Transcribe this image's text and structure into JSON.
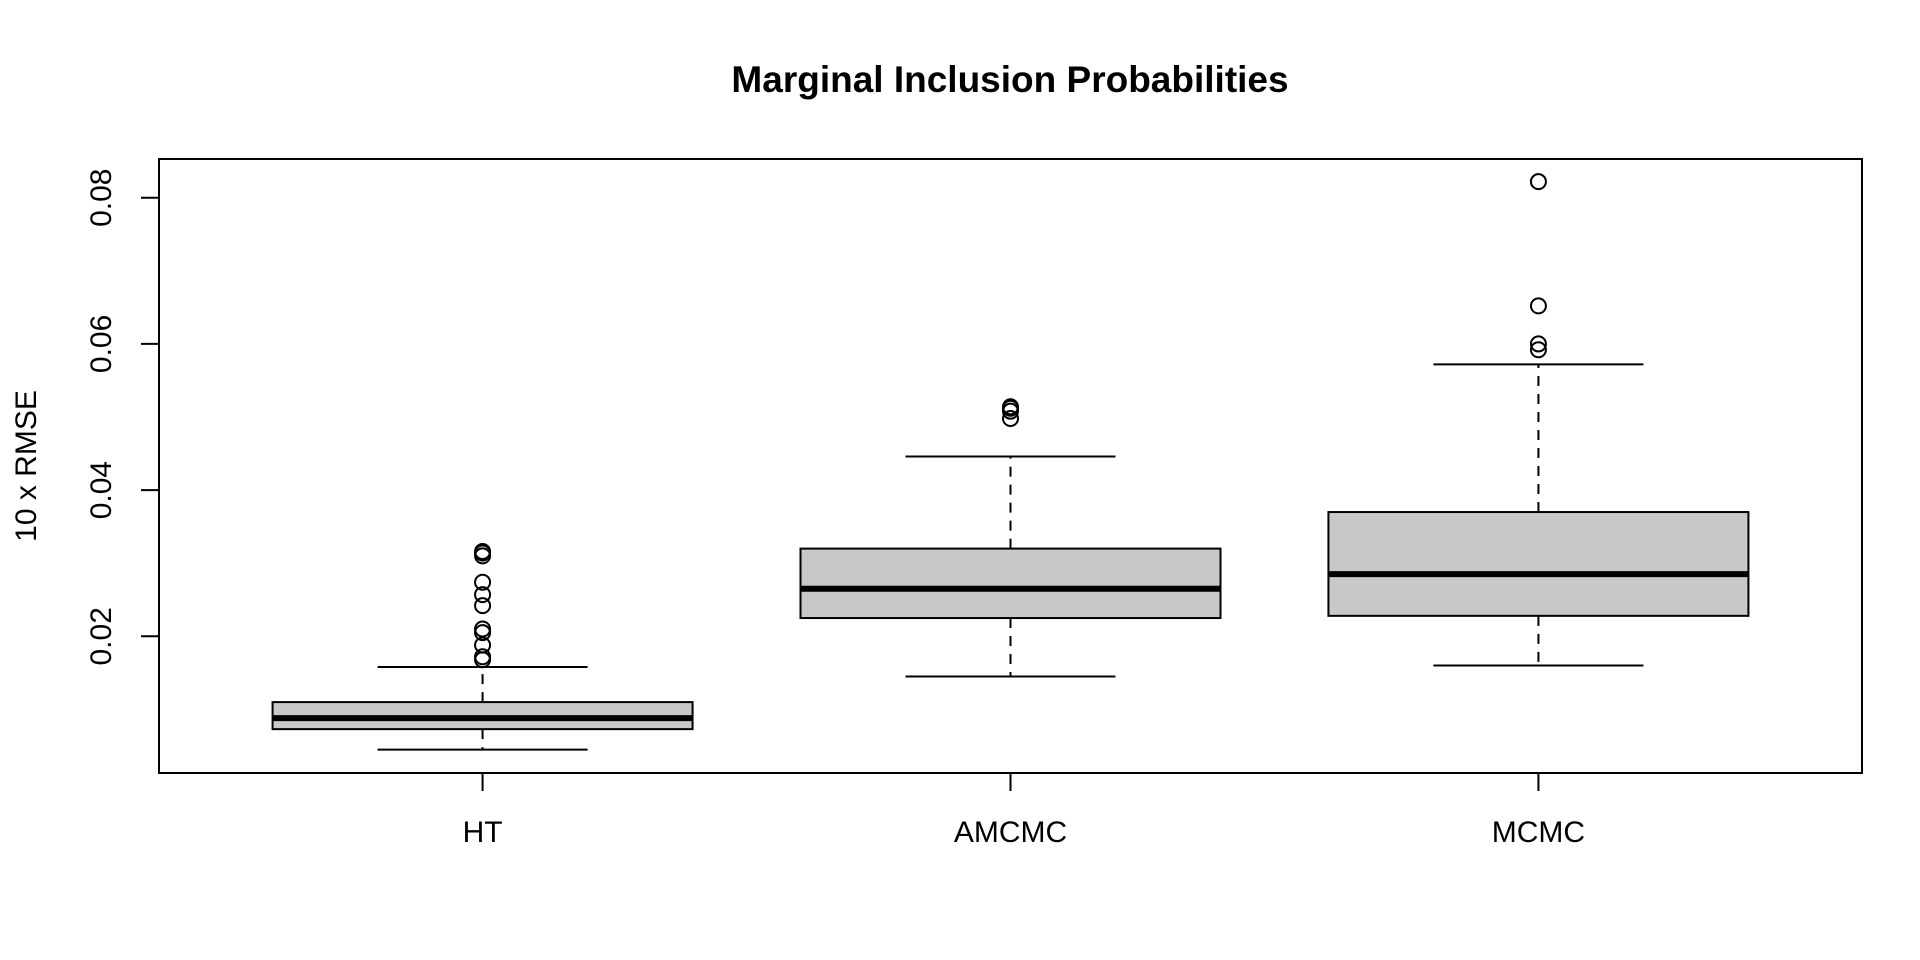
{
  "chart_data": {
    "type": "box",
    "title": "Marginal Inclusion Probabilities",
    "xlabel": "",
    "ylabel": "10 x RMSE",
    "ylim": [
      0.0013,
      0.0853
    ],
    "yticks": [
      0.02,
      0.04,
      0.06,
      0.08
    ],
    "ytick_labels": [
      "0.02",
      "0.04",
      "0.06",
      "0.08"
    ],
    "categories": [
      "HT",
      "AMCMC",
      "MCMC"
    ],
    "boxes": [
      {
        "name": "HT",
        "whisker_low": 0.0045,
        "q1": 0.0073,
        "median": 0.0088,
        "q3": 0.011,
        "whisker_high": 0.0158,
        "outliers": [
          0.0168,
          0.0172,
          0.0188,
          0.0205,
          0.021,
          0.0242,
          0.0257,
          0.0274,
          0.031,
          0.0314,
          0.0316
        ]
      },
      {
        "name": "AMCMC",
        "whisker_low": 0.0145,
        "q1": 0.0225,
        "median": 0.0265,
        "q3": 0.032,
        "whisker_high": 0.0446,
        "outliers": [
          0.0498,
          0.0508,
          0.0512,
          0.0514
        ]
      },
      {
        "name": "MCMC",
        "whisker_low": 0.016,
        "q1": 0.0228,
        "median": 0.0285,
        "q3": 0.037,
        "whisker_high": 0.0572,
        "outliers": [
          0.0592,
          0.06,
          0.0652,
          0.0822
        ]
      }
    ],
    "box_fill": "#c8c8c8",
    "line_color": "#000000",
    "grid": false,
    "legend": "none"
  }
}
